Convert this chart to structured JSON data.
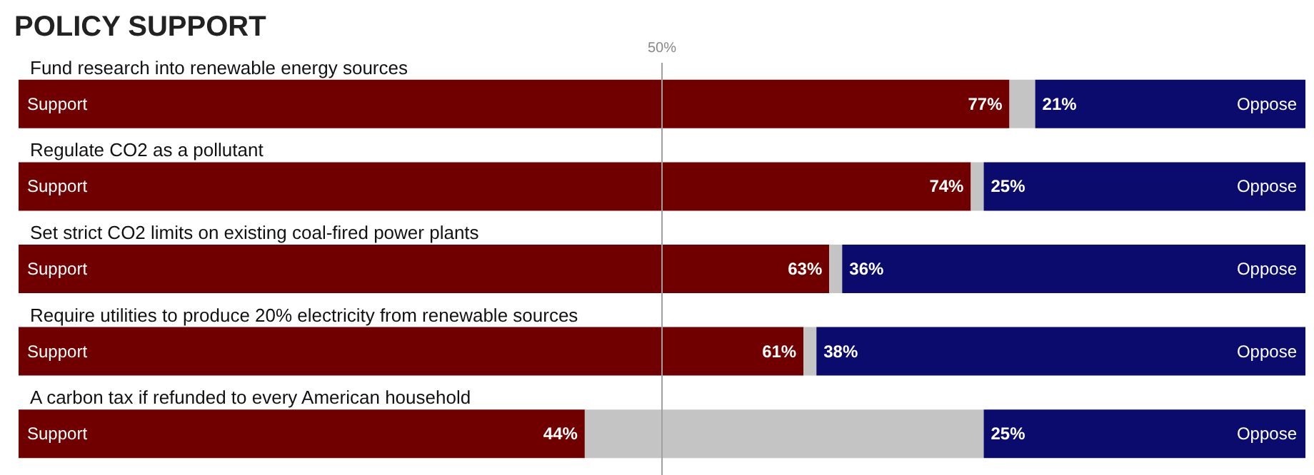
{
  "chart_data": {
    "type": "bar",
    "orientation": "horizontal",
    "stacked": true,
    "title": "POLICY SUPPORT",
    "categories": [
      "Fund research into renewable energy sources",
      "Regulate CO2 as a pollutant",
      "Set strict CO2 limits on existing coal-fired power plants",
      "Require utilities to produce 20% electricity from renewable sources",
      "A carbon tax if refunded to every American household"
    ],
    "xlim": [
      0,
      100
    ],
    "tick_labels": "y",
    "legend": false,
    "grid": false,
    "ref_lines": [
      {
        "axis": "x",
        "value": 50,
        "label": "50%",
        "color": "#a0a0a0"
      }
    ],
    "series": [
      {
        "name": "Support",
        "color": "#700000",
        "values": [
          77,
          74,
          63,
          61,
          44
        ],
        "value_labels": [
          "77%",
          "74%",
          "63%",
          "61%",
          "44%"
        ]
      },
      {
        "color": "#c4c4c4",
        "values": [
          2,
          1,
          1,
          1,
          31
        ]
      },
      {
        "name": "Oppose",
        "color": "#0b0b6d",
        "values": [
          21,
          25,
          36,
          38,
          25
        ],
        "value_labels": [
          "21%",
          "25%",
          "36%",
          "38%",
          "25%"
        ]
      }
    ]
  }
}
